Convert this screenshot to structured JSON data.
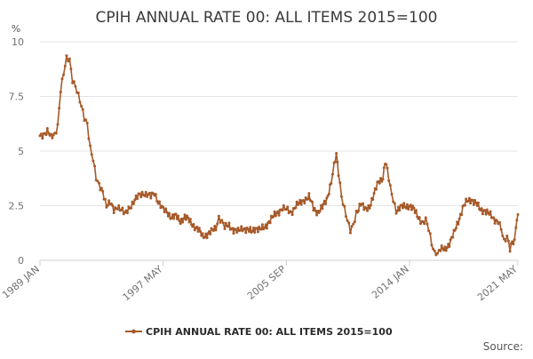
{
  "chart_data": {
    "type": "line",
    "title": "CPIH ANNUAL RATE 00: ALL ITEMS 2015=100",
    "ylabel": "%",
    "xlabel": "",
    "ylim": [
      0,
      10
    ],
    "yticks": [
      0,
      2.5,
      5,
      7.5,
      10
    ],
    "ytick_labels": [
      "0",
      "2.5",
      "5",
      "7.5",
      "10"
    ],
    "xlim": [
      1989.0,
      2021.333
    ],
    "xticks": [
      {
        "label": "1989 JAN",
        "x": 1989.0
      },
      {
        "label": "1997 MAY",
        "x": 1997.333
      },
      {
        "label": "2005 SEP",
        "x": 2005.667
      },
      {
        "label": "2014 JAN",
        "x": 2014.0
      },
      {
        "label": "2021 MAY",
        "x": 2021.333
      }
    ],
    "grid": true,
    "legend_position": "bottom-center",
    "series": [
      {
        "name": "CPIH ANNUAL RATE 00: ALL ITEMS 2015=100",
        "color": "#a65a2a",
        "points": [
          [
            1989.0,
            5.7
          ],
          [
            1989.25,
            5.8
          ],
          [
            1989.5,
            5.9
          ],
          [
            1989.75,
            5.6
          ],
          [
            1990.0,
            5.8
          ],
          [
            1990.2,
            6.2
          ],
          [
            1990.4,
            7.8
          ],
          [
            1990.6,
            8.5
          ],
          [
            1990.8,
            9.2
          ],
          [
            1991.0,
            9.2
          ],
          [
            1991.2,
            8.3
          ],
          [
            1991.4,
            8.0
          ],
          [
            1991.6,
            7.5
          ],
          [
            1991.8,
            7.0
          ],
          [
            1992.0,
            6.5
          ],
          [
            1992.2,
            6.3
          ],
          [
            1992.4,
            5.2
          ],
          [
            1992.6,
            4.6
          ],
          [
            1992.8,
            3.7
          ],
          [
            1993.0,
            3.4
          ],
          [
            1993.25,
            3.2
          ],
          [
            1993.5,
            2.5
          ],
          [
            1993.75,
            2.6
          ],
          [
            1994.0,
            2.3
          ],
          [
            1994.25,
            2.5
          ],
          [
            1994.5,
            2.3
          ],
          [
            1994.75,
            2.1
          ],
          [
            1995.0,
            2.4
          ],
          [
            1995.25,
            2.6
          ],
          [
            1995.5,
            2.8
          ],
          [
            1995.75,
            3.0
          ],
          [
            1996.0,
            3.1
          ],
          [
            1996.25,
            3.0
          ],
          [
            1996.5,
            2.9
          ],
          [
            1996.75,
            3.1
          ],
          [
            1997.0,
            2.7
          ],
          [
            1997.333,
            2.3
          ],
          [
            1997.6,
            2.2
          ],
          [
            1997.9,
            2.0
          ],
          [
            1998.2,
            2.0
          ],
          [
            1998.5,
            1.8
          ],
          [
            1998.8,
            2.0
          ],
          [
            1999.1,
            1.8
          ],
          [
            1999.4,
            1.6
          ],
          [
            1999.7,
            1.4
          ],
          [
            2000.0,
            1.1
          ],
          [
            2000.3,
            1.2
          ],
          [
            2000.6,
            1.3
          ],
          [
            2000.9,
            1.5
          ],
          [
            2001.1,
            2.0
          ],
          [
            2001.3,
            1.8
          ],
          [
            2001.5,
            1.5
          ],
          [
            2001.8,
            1.6
          ],
          [
            2002.1,
            1.4
          ],
          [
            2002.4,
            1.3
          ],
          [
            2002.7,
            1.5
          ],
          [
            2003.0,
            1.4
          ],
          [
            2003.3,
            1.3
          ],
          [
            2003.6,
            1.5
          ],
          [
            2003.9,
            1.4
          ],
          [
            2004.2,
            1.5
          ],
          [
            2004.5,
            1.8
          ],
          [
            2004.8,
            2.0
          ],
          [
            2005.1,
            2.2
          ],
          [
            2005.4,
            2.4
          ],
          [
            2005.667,
            2.3
          ],
          [
            2006.0,
            2.2
          ],
          [
            2006.3,
            2.5
          ],
          [
            2006.6,
            2.6
          ],
          [
            2006.9,
            2.8
          ],
          [
            2007.2,
            2.9
          ],
          [
            2007.5,
            2.4
          ],
          [
            2007.8,
            2.2
          ],
          [
            2008.1,
            2.4
          ],
          [
            2008.4,
            2.8
          ],
          [
            2008.7,
            3.6
          ],
          [
            2008.9,
            4.3
          ],
          [
            2009.05,
            4.8
          ],
          [
            2009.2,
            4.0
          ],
          [
            2009.4,
            3.0
          ],
          [
            2009.6,
            2.4
          ],
          [
            2009.8,
            1.8
          ],
          [
            2010.0,
            1.3
          ],
          [
            2010.2,
            1.6
          ],
          [
            2010.4,
            2.2
          ],
          [
            2010.7,
            2.6
          ],
          [
            2011.0,
            2.3
          ],
          [
            2011.3,
            2.5
          ],
          [
            2011.6,
            3.0
          ],
          [
            2011.9,
            3.6
          ],
          [
            2012.2,
            3.8
          ],
          [
            2012.35,
            4.5
          ],
          [
            2012.5,
            4.1
          ],
          [
            2012.7,
            3.3
          ],
          [
            2012.9,
            2.8
          ],
          [
            2013.1,
            2.3
          ],
          [
            2013.4,
            2.4
          ],
          [
            2013.7,
            2.5
          ],
          [
            2014.0,
            2.5
          ],
          [
            2014.3,
            2.3
          ],
          [
            2014.6,
            2.0
          ],
          [
            2014.9,
            1.7
          ],
          [
            2015.1,
            1.8
          ],
          [
            2015.3,
            1.4
          ],
          [
            2015.5,
            0.8
          ],
          [
            2015.7,
            0.4
          ],
          [
            2015.9,
            0.3
          ],
          [
            2016.1,
            0.5
          ],
          [
            2016.4,
            0.5
          ],
          [
            2016.7,
            0.8
          ],
          [
            2017.0,
            1.2
          ],
          [
            2017.3,
            1.8
          ],
          [
            2017.6,
            2.4
          ],
          [
            2017.9,
            2.7
          ],
          [
            2018.2,
            2.8
          ],
          [
            2018.5,
            2.6
          ],
          [
            2018.8,
            2.3
          ],
          [
            2019.1,
            2.3
          ],
          [
            2019.4,
            2.1
          ],
          [
            2019.7,
            1.9
          ],
          [
            2020.0,
            1.8
          ],
          [
            2020.2,
            1.4
          ],
          [
            2020.4,
            0.8
          ],
          [
            2020.6,
            1.1
          ],
          [
            2020.8,
            0.6
          ],
          [
            2020.95,
            0.9
          ],
          [
            2021.1,
            0.8
          ],
          [
            2021.2,
            1.5
          ],
          [
            2021.333,
            2.1
          ]
        ]
      }
    ],
    "source_text": "Source:"
  }
}
